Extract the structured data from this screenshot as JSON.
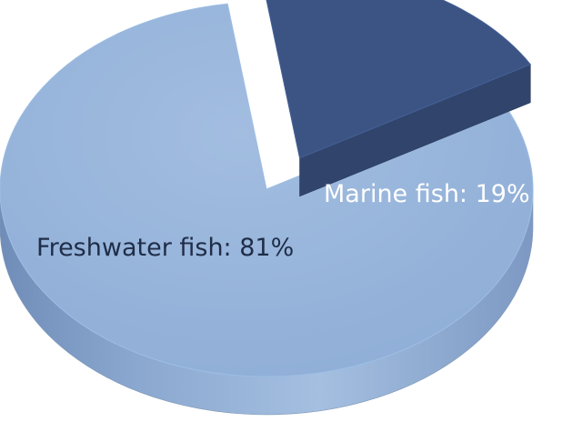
{
  "chart_data": {
    "type": "pie",
    "style": "3d-exploded",
    "title": "",
    "slices": [
      {
        "name": "Freshwater fish",
        "value": 81,
        "label": "Freshwater fish: 81%",
        "color": "#95b3d7"
      },
      {
        "name": "Marine fish",
        "value": 19,
        "label": "Marine fish: 19%",
        "color": "#3c5484"
      }
    ],
    "legend": "none",
    "exploded_slice": "Marine fish"
  }
}
